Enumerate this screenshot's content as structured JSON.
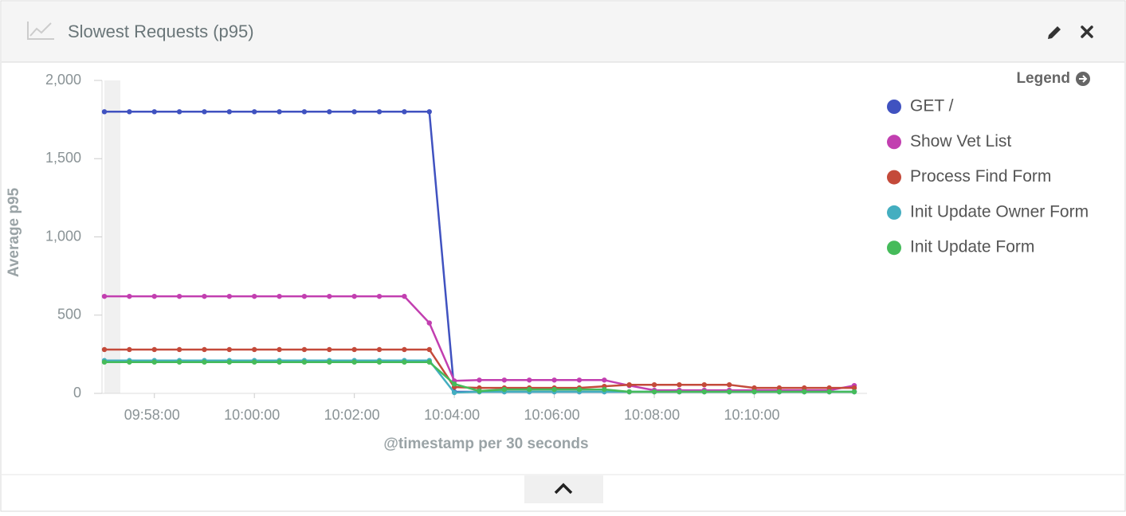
{
  "header": {
    "title": "Slowest Requests (p95)"
  },
  "chart_data": {
    "type": "line",
    "ylabel": "Average p95",
    "xlabel": "@timestamp per 30 seconds",
    "legend_title": "Legend",
    "legend": "right",
    "x": [
      "09:57:00",
      "09:57:30",
      "09:58:00",
      "09:58:30",
      "09:59:00",
      "09:59:30",
      "10:00:00",
      "10:00:30",
      "10:01:00",
      "10:01:30",
      "10:02:00",
      "10:02:30",
      "10:03:00",
      "10:03:30",
      "10:04:00",
      "10:04:30",
      "10:05:00",
      "10:05:30",
      "10:06:00",
      "10:06:30",
      "10:07:00",
      "10:07:30",
      "10:08:00",
      "10:08:30",
      "10:09:00",
      "10:09:30",
      "10:10:00",
      "10:10:30",
      "10:11:00",
      "10:11:30",
      "10:12:00"
    ],
    "xlim": [
      "09:57:00",
      "10:12:00"
    ],
    "xticks": [
      "09:58:00",
      "10:00:00",
      "10:02:00",
      "10:04:00",
      "10:06:00",
      "10:08:00",
      "10:10:00"
    ],
    "ylim": [
      0,
      2000
    ],
    "yticks": [
      0,
      500,
      {
        "value": 1000,
        "label": "1,000"
      },
      {
        "value": 1500,
        "label": "1,500"
      },
      {
        "value": 2000,
        "label": "2,000"
      }
    ],
    "series": [
      {
        "name": "GET /",
        "color": "#4052c0",
        "values": [
          1800,
          1800,
          1800,
          1800,
          1800,
          1800,
          1800,
          1800,
          1800,
          1800,
          1800,
          1800,
          1800,
          1800,
          10,
          10,
          10,
          10,
          10,
          10,
          10,
          10,
          10,
          10,
          10,
          10,
          10,
          10,
          10,
          10,
          10
        ]
      },
      {
        "name": "Show Vet List",
        "color": "#c23fb0",
        "values": [
          620,
          620,
          620,
          620,
          620,
          620,
          620,
          620,
          620,
          620,
          620,
          620,
          620,
          450,
          80,
          85,
          85,
          85,
          85,
          85,
          85,
          50,
          20,
          20,
          20,
          20,
          20,
          20,
          20,
          20,
          50
        ]
      },
      {
        "name": "Process Find Form",
        "color": "#c44a3a",
        "values": [
          280,
          280,
          280,
          280,
          280,
          280,
          280,
          280,
          280,
          280,
          280,
          280,
          280,
          280,
          40,
          35,
          35,
          35,
          35,
          35,
          45,
          55,
          55,
          55,
          55,
          55,
          35,
          35,
          35,
          35,
          35
        ]
      },
      {
        "name": "Init Update Owner Form",
        "color": "#44aec0",
        "values": [
          210,
          210,
          210,
          210,
          210,
          210,
          210,
          210,
          210,
          210,
          210,
          210,
          210,
          210,
          5,
          10,
          10,
          10,
          10,
          10,
          10,
          10,
          10,
          10,
          10,
          10,
          10,
          10,
          10,
          10,
          10
        ]
      },
      {
        "name": "Init Update Form",
        "color": "#45bb5a",
        "values": [
          200,
          200,
          200,
          200,
          200,
          200,
          200,
          200,
          200,
          200,
          200,
          200,
          200,
          200,
          60,
          15,
          25,
          25,
          25,
          25,
          25,
          10,
          10,
          10,
          10,
          10,
          10,
          10,
          10,
          10,
          10
        ]
      }
    ]
  }
}
